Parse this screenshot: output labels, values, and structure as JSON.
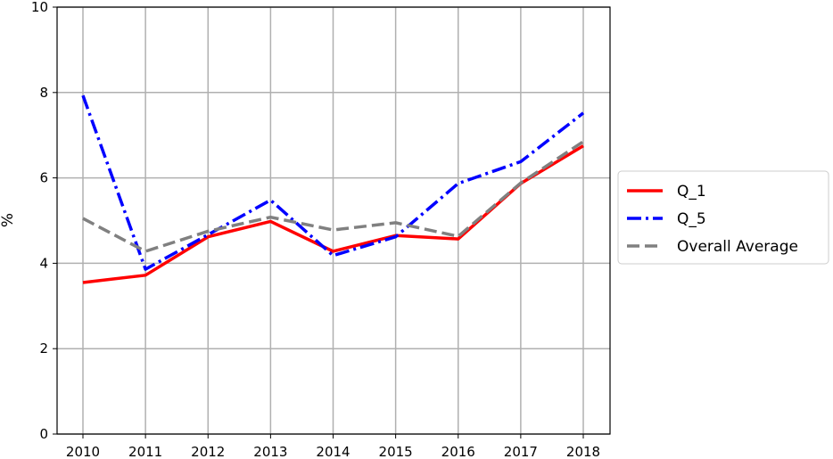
{
  "chart_data": {
    "type": "line",
    "title": "",
    "xlabel": "",
    "ylabel": "%",
    "x": [
      "2010",
      "2011",
      "2012",
      "2013",
      "2014",
      "2015",
      "2016",
      "2017",
      "2018"
    ],
    "ylim": [
      0,
      10
    ],
    "yticks": [
      "0",
      "2",
      "4",
      "6",
      "8",
      "10"
    ],
    "grid": true,
    "legend_position": "right",
    "series": [
      {
        "name": "Q_1",
        "color": "#ff0000",
        "style": "solid",
        "values": [
          3.55,
          3.72,
          4.62,
          4.98,
          4.28,
          4.65,
          4.57,
          5.87,
          6.75
        ]
      },
      {
        "name": "Q_5",
        "color": "#0000ff",
        "style": "dashdot",
        "values": [
          7.93,
          3.86,
          4.67,
          5.48,
          4.18,
          4.62,
          5.87,
          6.38,
          7.52
        ]
      },
      {
        "name": "Overall Average",
        "color": "#808080",
        "style": "dashed",
        "values": [
          5.05,
          4.28,
          4.75,
          5.08,
          4.78,
          4.95,
          4.63,
          5.88,
          6.85
        ]
      }
    ]
  }
}
